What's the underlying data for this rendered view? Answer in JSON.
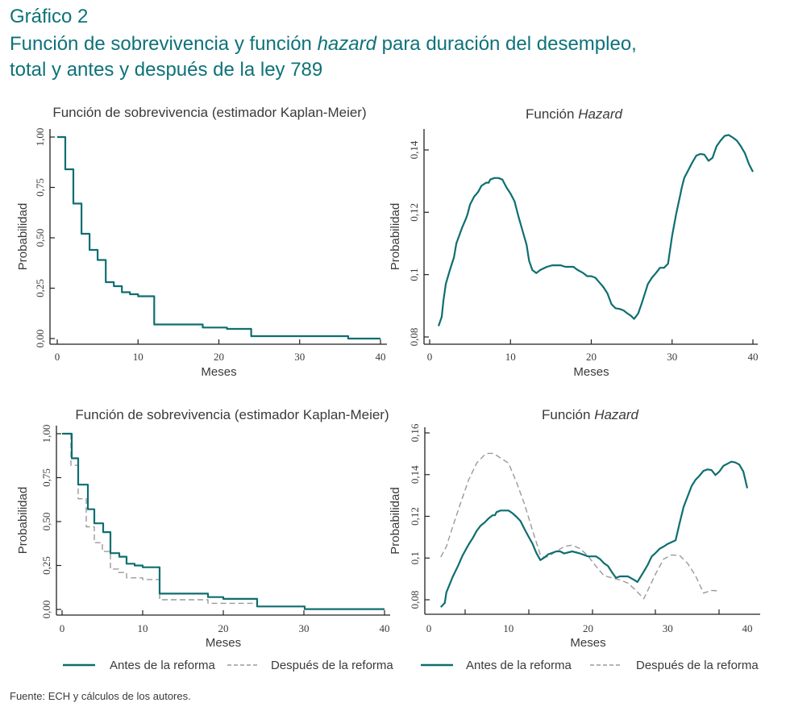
{
  "header": {
    "figure_label": "Gráfico 2",
    "title_line1_pre": "Función de sobrevivencia y función ",
    "title_line1_em": "hazard",
    "title_line1_post": " para duración del desempleo,",
    "title_line2": "total y antes y después de la ley 789"
  },
  "colors": {
    "teal": "#0e6e70",
    "gray": "#9a9a9a",
    "title": "#0e7279",
    "axis": "#222222"
  },
  "legend": {
    "left": [
      {
        "label": "Antes de la reforma",
        "style": "solid"
      },
      {
        "label": "Después de la reforma",
        "style": "dashed"
      }
    ],
    "right": [
      {
        "label": "Antes de la reforma",
        "style": "solid"
      },
      {
        "label": "Después de la reforma",
        "style": "dashed"
      }
    ]
  },
  "source": "Fuente: ECH y cálculos de los autores.",
  "chart_data": [
    {
      "id": "km-total",
      "type": "line",
      "step": true,
      "title": "Función de sobrevivencia (estimador Kaplan-Meier)",
      "title_em": "",
      "xlabel": "Meses",
      "ylabel": "Probabilidad",
      "xlim": [
        0,
        40
      ],
      "ylim": [
        0,
        1
      ],
      "xticks": [
        0,
        10,
        20,
        30,
        40
      ],
      "yticks": [
        0,
        0.25,
        0.5,
        0.75,
        1
      ],
      "yticklabels": [
        "0,00",
        "0,25",
        "0,50",
        "0,75",
        "1,00"
      ],
      "series": [
        {
          "name": "Total",
          "style": "solid",
          "x": [
            0,
            1,
            2,
            3,
            4,
            5,
            6,
            7,
            8,
            9,
            10,
            12,
            18,
            21,
            24,
            36,
            40
          ],
          "y": [
            1.0,
            0.84,
            0.67,
            0.52,
            0.44,
            0.39,
            0.28,
            0.26,
            0.23,
            0.22,
            0.21,
            0.07,
            0.055,
            0.048,
            0.012,
            0.0,
            0.0
          ]
        }
      ]
    },
    {
      "id": "hazard-total",
      "type": "line",
      "title": "Función ",
      "title_em": "Hazard",
      "xlabel": "Meses",
      "ylabel": "Probabilidad",
      "xlim": [
        0,
        40
      ],
      "ylim": [
        0.078,
        0.146
      ],
      "xticks": [
        0,
        10,
        20,
        30,
        40
      ],
      "yticks": [
        0.08,
        0.1,
        0.12,
        0.14
      ],
      "yticklabels": [
        "0,08",
        "0,1",
        "0,12",
        "0,14"
      ],
      "series": [
        {
          "name": "Total",
          "style": "solid",
          "x": [
            1.1,
            1.5,
            1.7,
            2,
            2.5,
            3,
            3.3,
            4,
            4.5,
            4.7,
            5,
            5.5,
            6,
            6.4,
            7,
            7.3,
            7.5,
            8,
            8.5,
            9,
            9.5,
            10,
            10.5,
            11,
            11.5,
            12,
            12.3,
            12.7,
            13.2,
            13.7,
            14.5,
            15.2,
            16.2,
            16.8,
            17.8,
            18.3,
            19,
            19.5,
            20,
            20.5,
            21,
            21.5,
            22,
            22.5,
            23,
            23.5,
            24,
            24.5,
            24.9,
            25.3,
            25.8,
            26.2,
            27,
            27.5,
            28,
            28.5,
            29,
            29.5,
            30,
            30.5,
            31,
            31.2,
            31.5,
            32,
            32.5,
            33,
            33.5,
            34,
            34.5,
            35,
            35.5,
            36,
            36.5,
            37,
            37.5,
            38,
            38.5,
            39,
            39.5,
            40
          ],
          "y": [
            0.0835,
            0.0865,
            0.0915,
            0.097,
            0.1015,
            0.1055,
            0.11,
            0.115,
            0.118,
            0.1195,
            0.1225,
            0.125,
            0.1265,
            0.1285,
            0.1295,
            0.1295,
            0.1305,
            0.131,
            0.131,
            0.1305,
            0.128,
            0.126,
            0.1235,
            0.1185,
            0.114,
            0.1095,
            0.1045,
            0.1015,
            0.1005,
            0.1015,
            0.1025,
            0.103,
            0.103,
            0.1025,
            0.1025,
            0.1015,
            0.1005,
            0.0995,
            0.0995,
            0.099,
            0.0975,
            0.096,
            0.094,
            0.0905,
            0.0892,
            0.089,
            0.0885,
            0.0875,
            0.0868,
            0.0858,
            0.0875,
            0.0905,
            0.097,
            0.099,
            0.1005,
            0.1022,
            0.1022,
            0.1035,
            0.1125,
            0.1195,
            0.1255,
            0.128,
            0.131,
            0.1335,
            0.136,
            0.1382,
            0.1387,
            0.1385,
            0.1365,
            0.1375,
            0.1412,
            0.143,
            0.1445,
            0.1448,
            0.144,
            0.143,
            0.1412,
            0.139,
            0.1355,
            0.133
          ]
        }
      ]
    },
    {
      "id": "km-reforma",
      "type": "line",
      "step": true,
      "title": "Función de sobrevivencia (estimador Kaplan-Meier)",
      "title_em": "",
      "xlabel": "Meses",
      "ylabel": "Probabilidad",
      "xlim": [
        0,
        40
      ],
      "ylim": [
        0,
        1
      ],
      "xticks": [
        0,
        10,
        20,
        30,
        40
      ],
      "yticks": [
        0,
        0.25,
        0.5,
        0.75,
        1
      ],
      "yticklabels": [
        "0,00",
        "0,25",
        "0,50",
        "0,75",
        "1,00"
      ],
      "series": [
        {
          "name": "Antes de la reforma",
          "style": "solid",
          "x": [
            0,
            1.2,
            2,
            3.2,
            4,
            5.1,
            6,
            7.1,
            8,
            9,
            10,
            12.1,
            18.1,
            20,
            24.2,
            30.1,
            40
          ],
          "y": [
            1.0,
            0.86,
            0.71,
            0.57,
            0.49,
            0.44,
            0.32,
            0.3,
            0.26,
            0.25,
            0.24,
            0.09,
            0.07,
            0.06,
            0.017,
            0.002,
            0.002
          ]
        },
        {
          "name": "Después de la reforma",
          "style": "dashed",
          "x": [
            0,
            1.1,
            2,
            3,
            4,
            5,
            6,
            7,
            8,
            10,
            12.1,
            18.1,
            24.2
          ],
          "y": [
            1.0,
            0.82,
            0.63,
            0.47,
            0.38,
            0.33,
            0.23,
            0.21,
            0.18,
            0.17,
            0.055,
            0.035,
            0.035
          ]
        }
      ]
    },
    {
      "id": "hazard-reforma",
      "type": "line",
      "title": "Función ",
      "title_em": "Hazard",
      "xlabel": "Meses",
      "ylabel": "Probabilidad",
      "xlim": [
        0,
        40
      ],
      "ylim": [
        0.073,
        0.162
      ],
      "xticks": [
        0,
        10,
        20,
        30,
        40
      ],
      "yticks": [
        0.08,
        0.1,
        0.12,
        0.14,
        0.16
      ],
      "yticklabels": [
        "0,08",
        "0,1",
        "0,12",
        "0,14",
        "0,16"
      ],
      "series": [
        {
          "name": "Antes de la reforma",
          "style": "solid",
          "x": [
            1.5,
            2,
            2.2,
            3,
            3.7,
            4.2,
            5,
            5.5,
            6,
            6.5,
            7,
            7.5,
            8,
            8.3,
            8.5,
            9,
            9.5,
            10,
            10.5,
            11,
            11.5,
            12,
            12.5,
            13,
            13.5,
            14,
            14.5,
            15,
            16,
            16.5,
            17,
            18,
            19,
            20,
            20.5,
            21,
            21.5,
            22,
            22.5,
            23,
            23.5,
            24,
            25,
            25.8,
            26.2,
            27,
            27.5,
            28,
            28.5,
            29,
            29.5,
            30,
            31,
            31.5,
            32,
            33,
            33.5,
            34,
            34.5,
            35,
            35.5,
            36,
            36.5,
            37,
            37.5,
            38,
            38.5,
            39,
            39.5,
            40
          ],
          "y": [
            0.0765,
            0.0785,
            0.0835,
            0.091,
            0.0965,
            0.101,
            0.1065,
            0.1095,
            0.113,
            0.1155,
            0.117,
            0.119,
            0.1205,
            0.1205,
            0.122,
            0.1228,
            0.1228,
            0.1228,
            0.1215,
            0.1198,
            0.1178,
            0.114,
            0.1105,
            0.107,
            0.1025,
            0.099,
            0.1002,
            0.1018,
            0.1032,
            0.1032,
            0.1022,
            0.1032,
            0.1022,
            0.1008,
            0.1008,
            0.1008,
            0.0995,
            0.0975,
            0.0962,
            0.0932,
            0.0905,
            0.0912,
            0.0912,
            0.0895,
            0.0885,
            0.0935,
            0.0968,
            0.1008,
            0.1025,
            0.1045,
            0.1055,
            0.1068,
            0.1085,
            0.1168,
            0.1245,
            0.1345,
            0.1375,
            0.1395,
            0.1418,
            0.1425,
            0.1422,
            0.1398,
            0.1415,
            0.1442,
            0.1452,
            0.1462,
            0.1458,
            0.1448,
            0.1415,
            0.1335
          ]
        },
        {
          "name": "Después de la reforma",
          "style": "dashed",
          "x": [
            1.5,
            2.2,
            3,
            4,
            5,
            6,
            6.5,
            7,
            7.5,
            8,
            8.5,
            9,
            10,
            10.5,
            11,
            12,
            13,
            14,
            14.5,
            15,
            16,
            17,
            18,
            19,
            20,
            21,
            22,
            23,
            24,
            25,
            26,
            27,
            27.5,
            28.5,
            29.5,
            30.5,
            31.5,
            32.5,
            33.5,
            34.5,
            35.5,
            36.5
          ],
          "y": [
            0.1005,
            0.1055,
            0.115,
            0.1265,
            0.1375,
            0.1455,
            0.1475,
            0.1495,
            0.1502,
            0.1502,
            0.1492,
            0.148,
            0.1455,
            0.141,
            0.1365,
            0.126,
            0.1135,
            0.1015,
            0.1002,
            0.1008,
            0.1032,
            0.1055,
            0.1062,
            0.1045,
            0.101,
            0.096,
            0.0915,
            0.0905,
            0.0895,
            0.088,
            0.0845,
            0.0805,
            0.0845,
            0.0925,
            0.0995,
            0.1015,
            0.1012,
            0.0975,
            0.0915,
            0.0832,
            0.0845,
            0.0842
          ]
        }
      ]
    }
  ]
}
